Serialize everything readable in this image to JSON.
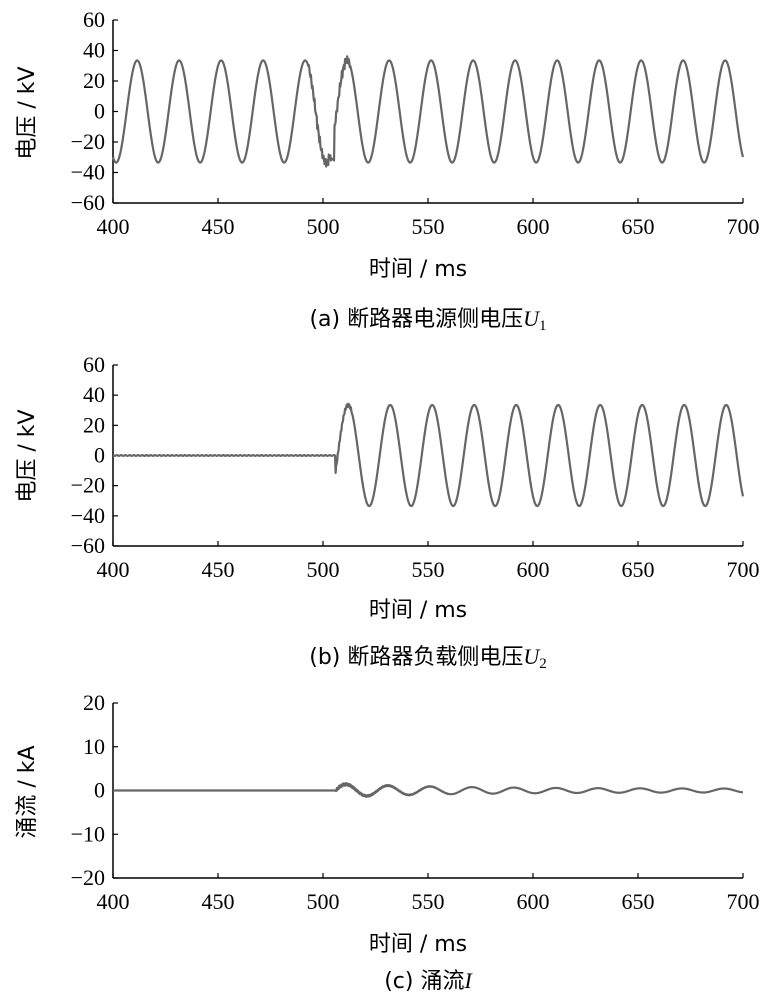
{
  "chart_data": [
    {
      "type": "line",
      "caption": {
        "prefix": "(a)  断路器电源侧电压",
        "var": "U",
        "sub": "1"
      },
      "xlabel": "时间 / ms",
      "ylabel": "电压 / kV",
      "xlim": [
        400,
        700
      ],
      "ylim": [
        -60,
        60
      ],
      "xticks": [
        "400",
        "450",
        "500",
        "550",
        "600",
        "650",
        "700"
      ],
      "yticks": [
        "60",
        "40",
        "20",
        "0",
        "−20",
        "−40",
        "−60"
      ],
      "line_color": "#666666",
      "series": [
        {
          "signal": "sine",
          "amplitude_kV": 33.5,
          "frequency_Hz": 50,
          "x_start": 400,
          "x_end": 700,
          "disturbance_window": [
            493,
            513
          ],
          "min_near_505": -37
        }
      ]
    },
    {
      "type": "line",
      "caption": {
        "prefix": "(b)  断路器负载侧电压",
        "var": "U",
        "sub": "2"
      },
      "xlabel": "时间 / ms",
      "ylabel": "电压 / kV",
      "xlim": [
        400,
        700
      ],
      "ylim": [
        -60,
        60
      ],
      "xticks": [
        "400",
        "450",
        "500",
        "550",
        "600",
        "650",
        "700"
      ],
      "yticks": [
        "60",
        "40",
        "20",
        "0",
        "−20",
        "−40",
        "−60"
      ],
      "line_color": "#666666",
      "series": [
        {
          "signal": "zero_then_sine",
          "zero_until_ms": 506,
          "amplitude_kV": 33.5,
          "peak_at_512_kV": 35,
          "frequency_Hz": 50,
          "x_end": 700
        }
      ]
    },
    {
      "type": "line",
      "caption": {
        "prefix": "(c)  涌流",
        "var": "I",
        "sub": ""
      },
      "xlabel": "时间 / ms",
      "ylabel": "涌流 / kA",
      "xlim": [
        400,
        700
      ],
      "ylim": [
        -20,
        20
      ],
      "xticks": [
        "400",
        "450",
        "500",
        "550",
        "600",
        "650",
        "700"
      ],
      "yticks": [
        "20",
        "10",
        "0",
        "−10",
        "−20"
      ],
      "line_color": "#666666",
      "series": [
        {
          "signal": "damped_oscillation",
          "zero_until_ms": 506,
          "initial_amplitude_kA": 1.5,
          "final_amplitude_kA": 0.4,
          "frequency_Hz": 50,
          "x_end": 700
        }
      ]
    }
  ]
}
